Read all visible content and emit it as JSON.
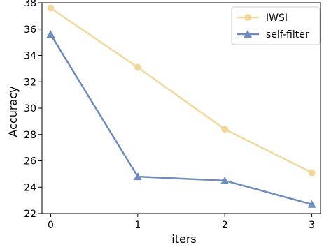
{
  "chart_data": {
    "type": "line",
    "x": [
      0,
      1,
      2,
      3
    ],
    "xticks": [
      "0",
      "1",
      "2",
      "3"
    ],
    "xlabel": "iters",
    "ylabel": "Accuracy",
    "xlim": [
      -0.1,
      3.1
    ],
    "ylim": [
      22,
      38
    ],
    "yticks": [
      "22",
      "24",
      "26",
      "28",
      "30",
      "32",
      "34",
      "36",
      "38"
    ],
    "grid": false,
    "legend_position": "top-right",
    "series": [
      {
        "name": "IWSI",
        "values": [
          37.6,
          33.1,
          28.4,
          25.1
        ],
        "color": "#f2d89a",
        "marker": "circle"
      },
      {
        "name": "self-filter",
        "values": [
          35.6,
          24.8,
          24.5,
          22.7
        ],
        "color": "#6d8bbd",
        "marker": "triangle"
      }
    ]
  }
}
